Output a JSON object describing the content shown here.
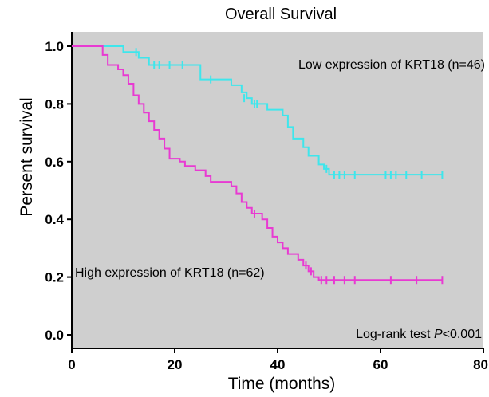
{
  "chart_data": {
    "type": "line",
    "title": "Overall Survival",
    "xlabel": "Time (months)",
    "ylabel": "Persent survival",
    "xlim": [
      0,
      80
    ],
    "ylim": [
      0,
      1.0
    ],
    "xticks": [
      0,
      20,
      40,
      60,
      80
    ],
    "yticks": [
      0.0,
      0.2,
      0.4,
      0.6,
      0.8,
      1.0
    ],
    "xtick_labels": [
      "0",
      "20",
      "40",
      "60",
      "80"
    ],
    "ytick_labels": [
      "0.0",
      "0.2",
      "0.4",
      "0.6",
      "0.8",
      "1.0"
    ],
    "plot_background": "#cfcfcf",
    "grid": false,
    "series": [
      {
        "name": "Low expression of KRT18 (n=46)",
        "color": "#3ee6ec",
        "steps": [
          [
            0,
            1.0
          ],
          [
            10,
            0.98
          ],
          [
            13,
            0.96
          ],
          [
            15,
            0.935
          ],
          [
            25,
            0.885
          ],
          [
            31,
            0.865
          ],
          [
            33,
            0.84
          ],
          [
            34,
            0.82
          ],
          [
            35,
            0.8
          ],
          [
            38,
            0.78
          ],
          [
            41,
            0.76
          ],
          [
            42,
            0.72
          ],
          [
            43,
            0.68
          ],
          [
            45,
            0.65
          ],
          [
            46,
            0.62
          ],
          [
            48,
            0.59
          ],
          [
            49,
            0.575
          ],
          [
            50,
            0.555
          ],
          [
            72,
            0.555
          ]
        ],
        "censored": [
          [
            12.5,
            0.98
          ],
          [
            16,
            0.935
          ],
          [
            17,
            0.935
          ],
          [
            19,
            0.935
          ],
          [
            21.5,
            0.935
          ],
          [
            27,
            0.885
          ],
          [
            33.5,
            0.82
          ],
          [
            35.5,
            0.8
          ],
          [
            36,
            0.8
          ],
          [
            49.5,
            0.575
          ],
          [
            51,
            0.555
          ],
          [
            52,
            0.555
          ],
          [
            53,
            0.555
          ],
          [
            55,
            0.555
          ],
          [
            61,
            0.555
          ],
          [
            62,
            0.555
          ],
          [
            63,
            0.555
          ],
          [
            65,
            0.555
          ],
          [
            68,
            0.555
          ],
          [
            72,
            0.555
          ]
        ]
      },
      {
        "name": "High expression of KRT18 (n=62)",
        "color": "#e83ad2",
        "steps": [
          [
            0,
            1.0
          ],
          [
            6,
            0.97
          ],
          [
            7,
            0.935
          ],
          [
            9,
            0.92
          ],
          [
            10,
            0.9
          ],
          [
            11,
            0.87
          ],
          [
            12,
            0.83
          ],
          [
            13,
            0.8
          ],
          [
            14,
            0.77
          ],
          [
            15,
            0.74
          ],
          [
            16,
            0.71
          ],
          [
            17,
            0.68
          ],
          [
            18,
            0.645
          ],
          [
            19,
            0.61
          ],
          [
            21,
            0.6
          ],
          [
            22,
            0.585
          ],
          [
            24,
            0.57
          ],
          [
            26,
            0.55
          ],
          [
            27,
            0.53
          ],
          [
            31,
            0.515
          ],
          [
            32,
            0.49
          ],
          [
            33,
            0.46
          ],
          [
            34,
            0.44
          ],
          [
            35,
            0.42
          ],
          [
            37,
            0.4
          ],
          [
            38,
            0.37
          ],
          [
            39,
            0.34
          ],
          [
            40,
            0.32
          ],
          [
            41,
            0.3
          ],
          [
            42,
            0.28
          ],
          [
            44,
            0.26
          ],
          [
            45,
            0.24
          ],
          [
            46,
            0.22
          ],
          [
            47,
            0.2
          ],
          [
            48,
            0.19
          ],
          [
            72,
            0.19
          ]
        ],
        "censored": [
          [
            35.5,
            0.42
          ],
          [
            45.5,
            0.24
          ],
          [
            46.5,
            0.22
          ],
          [
            48.5,
            0.19
          ],
          [
            49.5,
            0.19
          ],
          [
            51,
            0.19
          ],
          [
            53,
            0.19
          ],
          [
            55,
            0.19
          ],
          [
            62,
            0.19
          ],
          [
            67,
            0.19
          ],
          [
            72,
            0.19
          ]
        ]
      }
    ],
    "annotations": [
      {
        "text": "Low expression of KRT18 (n=46)",
        "x": 0.5,
        "y": 0.5
      },
      {
        "text": "High expression of KRT18 (n=62)",
        "x": 0.5,
        "y": 0.5
      }
    ],
    "test_label": "Log-rank test ",
    "test_p": "P",
    "test_value": "<0.001"
  }
}
